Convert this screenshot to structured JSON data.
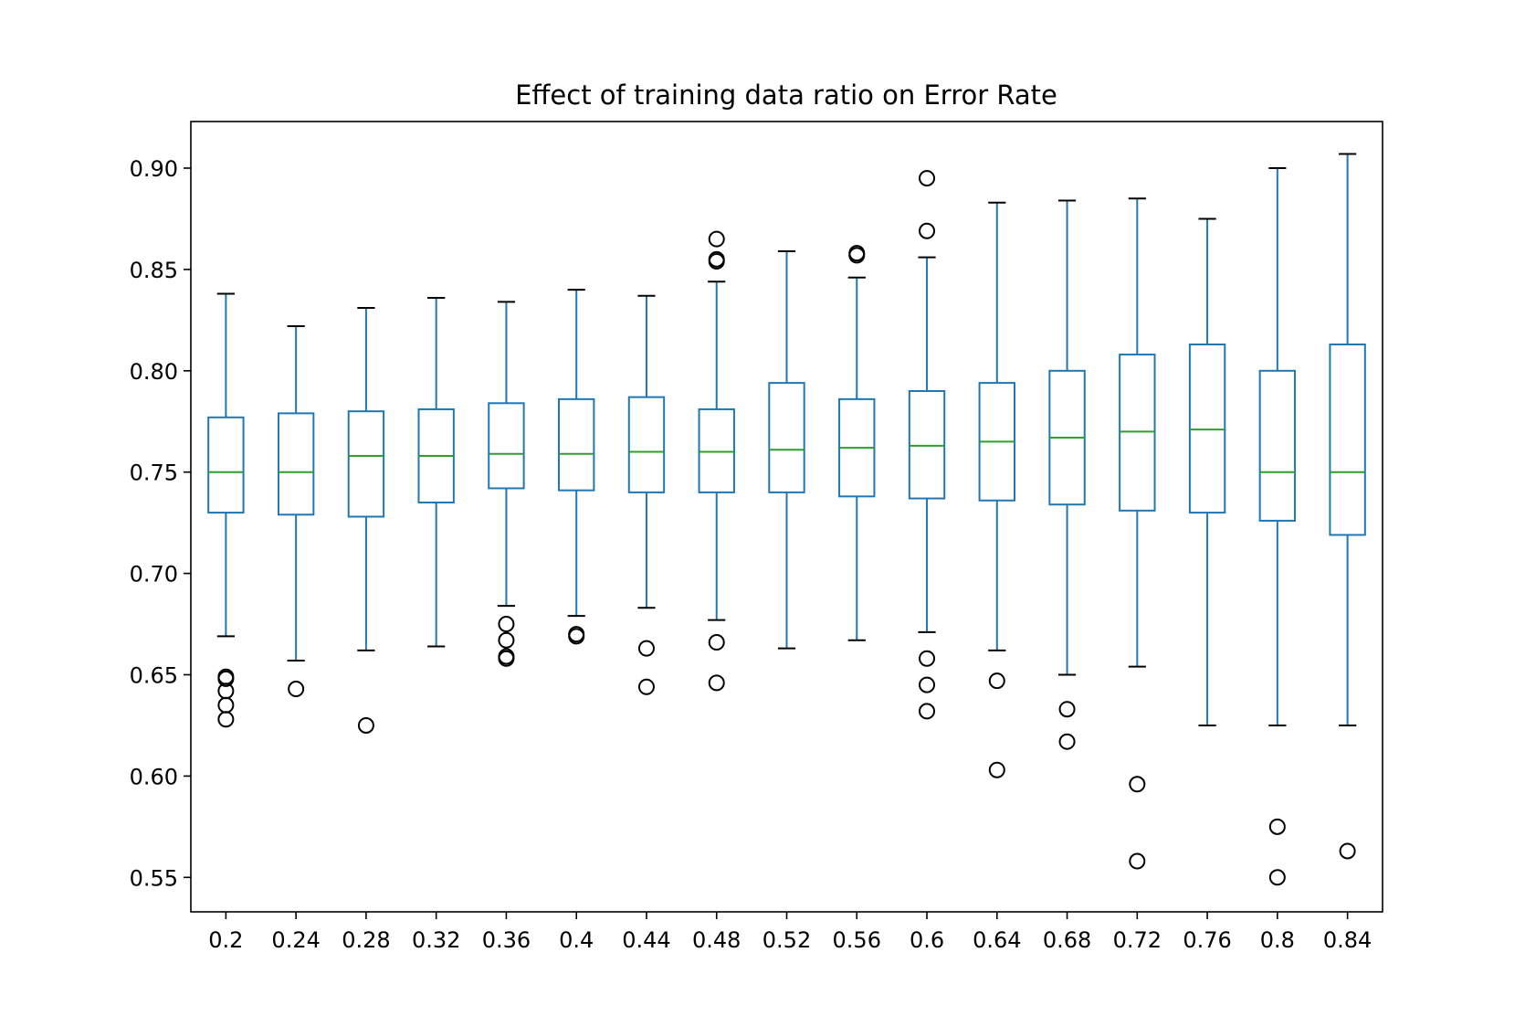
{
  "chart_data": {
    "type": "box",
    "title": "Effect of training data ratio on Error Rate",
    "xlabel": "",
    "ylabel": "",
    "ylim": [
      0.533,
      0.923
    ],
    "y_ticks": [
      0.55,
      0.6,
      0.65,
      0.7,
      0.75,
      0.8,
      0.85,
      0.9
    ],
    "y_tick_labels": [
      "0.55",
      "0.60",
      "0.65",
      "0.70",
      "0.75",
      "0.80",
      "0.85",
      "0.90"
    ],
    "categories": [
      "0.2",
      "0.24",
      "0.28",
      "0.32",
      "0.36",
      "0.4",
      "0.44",
      "0.48",
      "0.52",
      "0.56",
      "0.6",
      "0.64",
      "0.68",
      "0.72",
      "0.76",
      "0.8",
      "0.84"
    ],
    "grid": false,
    "colors": {
      "box": "#1f77b4",
      "median": "#2ca02c",
      "whisker_cap": "#000000",
      "outlier": "#000000"
    },
    "boxes": [
      {
        "whislo": 0.669,
        "q1": 0.73,
        "med": 0.75,
        "q3": 0.777,
        "whishi": 0.838,
        "fliers": [
          0.649,
          0.648,
          0.642,
          0.635,
          0.628
        ]
      },
      {
        "whislo": 0.657,
        "q1": 0.729,
        "med": 0.75,
        "q3": 0.779,
        "whishi": 0.822,
        "fliers": [
          0.643
        ]
      },
      {
        "whislo": 0.662,
        "q1": 0.728,
        "med": 0.758,
        "q3": 0.78,
        "whishi": 0.831,
        "fliers": [
          0.625
        ]
      },
      {
        "whislo": 0.664,
        "q1": 0.735,
        "med": 0.758,
        "q3": 0.781,
        "whishi": 0.836,
        "fliers": []
      },
      {
        "whislo": 0.684,
        "q1": 0.742,
        "med": 0.759,
        "q3": 0.784,
        "whishi": 0.834,
        "fliers": [
          0.675,
          0.667,
          0.659,
          0.658
        ]
      },
      {
        "whislo": 0.679,
        "q1": 0.741,
        "med": 0.759,
        "q3": 0.786,
        "whishi": 0.84,
        "fliers": [
          0.67,
          0.669
        ]
      },
      {
        "whislo": 0.683,
        "q1": 0.74,
        "med": 0.76,
        "q3": 0.787,
        "whishi": 0.837,
        "fliers": [
          0.663,
          0.644
        ]
      },
      {
        "whislo": 0.677,
        "q1": 0.74,
        "med": 0.76,
        "q3": 0.781,
        "whishi": 0.844,
        "fliers": [
          0.865,
          0.855,
          0.854,
          0.666,
          0.646
        ]
      },
      {
        "whislo": 0.663,
        "q1": 0.74,
        "med": 0.761,
        "q3": 0.794,
        "whishi": 0.859,
        "fliers": []
      },
      {
        "whislo": 0.667,
        "q1": 0.738,
        "med": 0.762,
        "q3": 0.786,
        "whishi": 0.846,
        "fliers": [
          0.858,
          0.857
        ]
      },
      {
        "whislo": 0.671,
        "q1": 0.737,
        "med": 0.763,
        "q3": 0.79,
        "whishi": 0.856,
        "fliers": [
          0.895,
          0.869,
          0.658,
          0.645,
          0.632
        ]
      },
      {
        "whislo": 0.662,
        "q1": 0.736,
        "med": 0.765,
        "q3": 0.794,
        "whishi": 0.883,
        "fliers": [
          0.647,
          0.603
        ]
      },
      {
        "whislo": 0.65,
        "q1": 0.734,
        "med": 0.767,
        "q3": 0.8,
        "whishi": 0.884,
        "fliers": [
          0.633,
          0.617
        ]
      },
      {
        "whislo": 0.654,
        "q1": 0.731,
        "med": 0.77,
        "q3": 0.808,
        "whishi": 0.885,
        "fliers": [
          0.596,
          0.558
        ]
      },
      {
        "whislo": 0.625,
        "q1": 0.73,
        "med": 0.771,
        "q3": 0.813,
        "whishi": 0.875,
        "fliers": []
      },
      {
        "whislo": 0.625,
        "q1": 0.726,
        "med": 0.75,
        "q3": 0.8,
        "whishi": 0.9,
        "fliers": [
          0.575,
          0.55
        ]
      },
      {
        "whislo": 0.625,
        "q1": 0.719,
        "med": 0.75,
        "q3": 0.813,
        "whishi": 0.907,
        "fliers": [
          0.563
        ]
      }
    ]
  }
}
